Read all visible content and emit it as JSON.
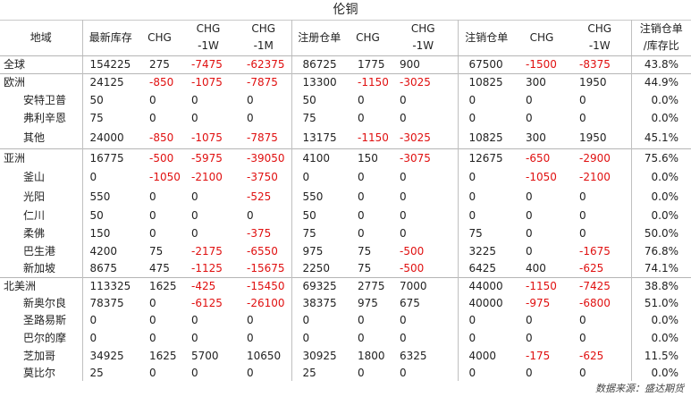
{
  "title": "伦铜",
  "headers": [
    [
      "地域"
    ],
    [
      "最新库存"
    ],
    [
      "CHG"
    ],
    [
      "CHG",
      "-1W"
    ],
    [
      "CHG",
      "-1M"
    ],
    [
      "注册仓单"
    ],
    [
      "CHG"
    ],
    [
      "CHG",
      "-1W"
    ],
    [
      "注销仓单"
    ],
    [
      "CHG"
    ],
    [
      "CHG",
      "-1W"
    ],
    [
      "注销仓单",
      "/库存比"
    ]
  ],
  "rows": [
    {
      "kind": "region",
      "cells": [
        "全球",
        "154225",
        "275",
        "-7475",
        "-62375",
        "86725",
        "1775",
        "900",
        "67500",
        "-1500",
        "-8375",
        "43.8%"
      ]
    },
    {
      "kind": "region",
      "cells": [
        "欧洲",
        "24125",
        "-850",
        "-1075",
        "-7875",
        "13300",
        "-1150",
        "-3025",
        "10825",
        "300",
        "1950",
        "44.9%"
      ]
    },
    {
      "kind": "city",
      "cells": [
        "安特卫普",
        "50",
        "0",
        "0",
        "0",
        "50",
        "0",
        "0",
        "0",
        "0",
        "0",
        "0.0%"
      ]
    },
    {
      "kind": "city",
      "cells": [
        "弗利辛恩",
        "75",
        "0",
        "0",
        "0",
        "75",
        "0",
        "0",
        "0",
        "0",
        "0",
        "0.0%"
      ]
    },
    {
      "kind": "city",
      "cells": [
        "其他",
        "24000",
        "-850",
        "-1075",
        "-7875",
        "13175",
        "-1150",
        "-3025",
        "10825",
        "300",
        "1950",
        "45.1%"
      ]
    },
    {
      "kind": "region",
      "cells": [
        "亚洲",
        "16775",
        "-500",
        "-5975",
        "-39050",
        "4100",
        "150",
        "-3075",
        "12675",
        "-650",
        "-2900",
        "75.6%"
      ]
    },
    {
      "kind": "city",
      "cells": [
        "釜山",
        "0",
        "-1050",
        "-2100",
        "-3750",
        "0",
        "0",
        "0",
        "0",
        "-1050",
        "-2100",
        "0.0%"
      ]
    },
    {
      "kind": "city",
      "cells": [
        "光阳",
        "550",
        "0",
        "0",
        "-525",
        "550",
        "0",
        "0",
        "0",
        "0",
        "0",
        "0.0%"
      ]
    },
    {
      "kind": "city",
      "cells": [
        "仁川",
        "50",
        "0",
        "0",
        "0",
        "50",
        "0",
        "0",
        "0",
        "0",
        "0",
        "0.0%"
      ]
    },
    {
      "kind": "city",
      "cells": [
        "柔佛",
        "150",
        "0",
        "0",
        "-375",
        "75",
        "0",
        "0",
        "75",
        "0",
        "0",
        "50.0%"
      ]
    },
    {
      "kind": "city",
      "cells": [
        "巴生港",
        "4200",
        "75",
        "-2175",
        "-6550",
        "975",
        "75",
        "-500",
        "3225",
        "0",
        "-1675",
        "76.8%"
      ]
    },
    {
      "kind": "city",
      "cells": [
        "新加坡",
        "8675",
        "475",
        "-1125",
        "-15675",
        "2250",
        "75",
        "-500",
        "6425",
        "400",
        "-625",
        "74.1%"
      ]
    },
    {
      "kind": "region",
      "cells": [
        "北美洲",
        "113325",
        "1625",
        "-425",
        "-15450",
        "69325",
        "2775",
        "7000",
        "44000",
        "-1150",
        "-7425",
        "38.8%"
      ]
    },
    {
      "kind": "city",
      "cells": [
        "新奥尔良",
        "78375",
        "0",
        "-6125",
        "-26100",
        "38375",
        "975",
        "675",
        "40000",
        "-975",
        "-6800",
        "51.0%"
      ]
    },
    {
      "kind": "city",
      "cells": [
        "圣路易斯",
        "0",
        "0",
        "0",
        "0",
        "0",
        "0",
        "0",
        "0",
        "0",
        "0",
        "0.0%"
      ]
    },
    {
      "kind": "city",
      "cells": [
        "巴尔的摩",
        "0",
        "0",
        "0",
        "0",
        "0",
        "0",
        "0",
        "0",
        "0",
        "0",
        "0.0%"
      ]
    },
    {
      "kind": "city",
      "cells": [
        "芝加哥",
        "34925",
        "1625",
        "5700",
        "10650",
        "30925",
        "1800",
        "6325",
        "4000",
        "-175",
        "-625",
        "11.5%"
      ]
    },
    {
      "kind": "city",
      "cells": [
        "莫比尔",
        "25",
        "0",
        "0",
        "0",
        "25",
        "0",
        "0",
        "0",
        "0",
        "0",
        "0.0%"
      ]
    }
  ],
  "source": "数据来源：盛达期货",
  "colors": {
    "negative": "#e01010",
    "text": "#222222",
    "rule": "#b5b5b5"
  }
}
